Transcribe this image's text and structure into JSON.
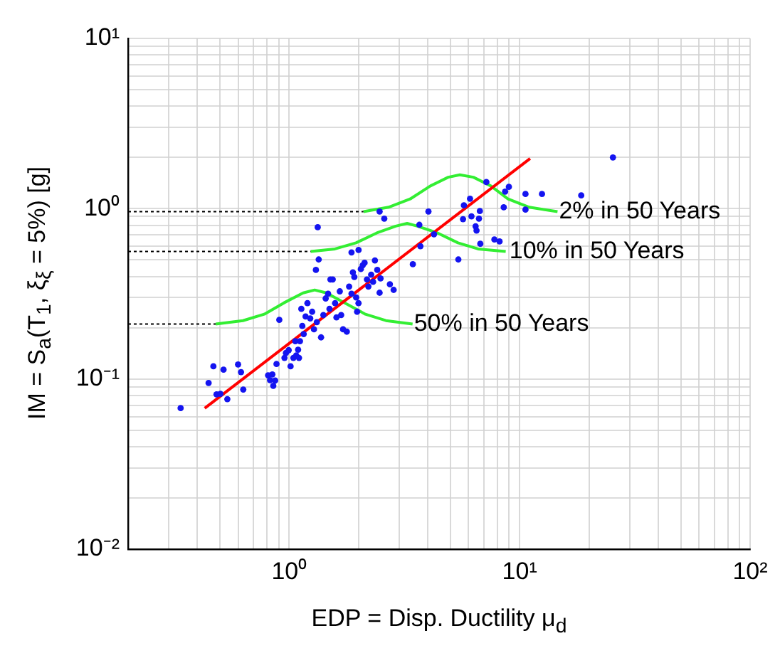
{
  "chart_data": {
    "type": "scatter",
    "xlabel": "EDP = Disp. Ductility μ$_{d}$",
    "ylabel": "IM = S$_{a}$(T$_{1}$, ξ$_{ξ}$ = 5%) [g]",
    "log": "xy",
    "grid": true,
    "legend": false,
    "marker": "circle",
    "xlim": [
      0.2,
      100
    ],
    "ylim": [
      0.01,
      10
    ],
    "xticks": [
      {
        "value": 0.2,
        "label": null
      },
      {
        "value": 0.3,
        "label": null
      },
      {
        "value": 0.4,
        "label": null
      },
      {
        "value": 0.5,
        "label": null
      },
      {
        "value": 0.6,
        "label": null
      },
      {
        "value": 0.7,
        "label": null
      },
      {
        "value": 0.8,
        "label": null
      },
      {
        "value": 0.9,
        "label": null
      },
      {
        "value": 1,
        "label": "10⁰"
      },
      {
        "value": 2,
        "label": null
      },
      {
        "value": 3,
        "label": null
      },
      {
        "value": 4,
        "label": null
      },
      {
        "value": 5,
        "label": null
      },
      {
        "value": 6,
        "label": null
      },
      {
        "value": 7,
        "label": null
      },
      {
        "value": 8,
        "label": null
      },
      {
        "value": 9,
        "label": null
      },
      {
        "value": 10,
        "label": "10¹"
      },
      {
        "value": 20,
        "label": null
      },
      {
        "value": 30,
        "label": null
      },
      {
        "value": 40,
        "label": null
      },
      {
        "value": 50,
        "label": null
      },
      {
        "value": 60,
        "label": null
      },
      {
        "value": 70,
        "label": null
      },
      {
        "value": 80,
        "label": null
      },
      {
        "value": 90,
        "label": null
      },
      {
        "value": 100,
        "label": "10²"
      }
    ],
    "yticks": [
      {
        "value": 0.01,
        "label": "10⁻²"
      },
      {
        "value": 0.02,
        "label": null
      },
      {
        "value": 0.03,
        "label": null
      },
      {
        "value": 0.04,
        "label": null
      },
      {
        "value": 0.05,
        "label": null
      },
      {
        "value": 0.06,
        "label": null
      },
      {
        "value": 0.07,
        "label": null
      },
      {
        "value": 0.08,
        "label": null
      },
      {
        "value": 0.09,
        "label": null
      },
      {
        "value": 0.1,
        "label": "10⁻¹"
      },
      {
        "value": 0.2,
        "label": null
      },
      {
        "value": 0.3,
        "label": null
      },
      {
        "value": 0.4,
        "label": null
      },
      {
        "value": 0.5,
        "label": null
      },
      {
        "value": 0.6,
        "label": null
      },
      {
        "value": 0.7,
        "label": null
      },
      {
        "value": 0.8,
        "label": null
      },
      {
        "value": 0.9,
        "label": null
      },
      {
        "value": 1,
        "label": "10⁰"
      },
      {
        "value": 2,
        "label": null
      },
      {
        "value": 3,
        "label": null
      },
      {
        "value": 4,
        "label": null
      },
      {
        "value": 5,
        "label": null
      },
      {
        "value": 6,
        "label": null
      },
      {
        "value": 7,
        "label": null
      },
      {
        "value": 8,
        "label": null
      },
      {
        "value": 9,
        "label": null
      },
      {
        "value": 10,
        "label": "10¹"
      }
    ],
    "series": [
      {
        "type": "line",
        "color": "#000000",
        "line_style": "dotted",
        "marker": "none",
        "x": [
          0.2,
          2.1
        ],
        "values": [
          0.96,
          0.96
        ]
      },
      {
        "type": "line",
        "color": "#000000",
        "line_style": "dotted",
        "marker": "none",
        "x": [
          0.2,
          1.24
        ],
        "values": [
          0.56,
          0.56
        ]
      },
      {
        "type": "line",
        "color": "#000000",
        "line_style": "dotted",
        "marker": "none",
        "x": [
          0.2,
          0.48
        ],
        "values": [
          0.21,
          0.21
        ]
      },
      {
        "type": "scatter",
        "color": "#1414f0",
        "x": [
          0.338,
          0.447,
          0.469,
          0.484,
          0.503,
          0.519,
          0.539,
          0.6,
          0.618,
          0.632,
          0.81,
          0.826,
          0.845,
          0.853,
          0.869,
          0.881,
          0.906,
          0.954,
          0.968,
          0.995,
          1.014,
          1.043,
          1.063,
          1.073,
          1.093,
          1.103,
          1.114,
          1.129,
          1.14,
          1.156,
          1.178,
          1.2,
          1.234,
          1.258,
          1.281,
          1.306,
          1.318,
          1.343,
          1.375,
          1.407,
          1.44,
          1.475,
          1.496,
          1.51,
          1.545,
          1.582,
          1.604,
          1.658,
          1.681,
          1.713,
          1.778,
          1.82,
          1.864,
          1.89,
          1.917,
          1.953,
          1.971,
          1.999,
          2.046,
          2.085,
          2.124,
          2.175,
          2.206,
          2.269,
          2.312,
          2.355,
          2.411,
          2.468,
          2.491,
          2.735,
          2.84,
          3.44,
          5.42,
          1.33,
          1.864,
          2.0,
          2.468,
          2.586,
          3.71,
          3.67,
          4.02,
          4.25,
          5.68,
          5.73,
          6.09,
          6.18,
          6.44,
          6.5,
          6.66,
          6.72,
          6.75,
          7.17,
          7.77,
          8.18,
          8.53,
          8.65,
          8.98,
          10.6,
          10.6,
          12.5,
          18.5,
          25.4
        ],
        "values": [
          0.0674,
          0.0947,
          0.1186,
          0.0812,
          0.0817,
          0.1133,
          0.0761,
          0.1216,
          0.1097,
          0.0866,
          0.105,
          0.0984,
          0.1063,
          0.0911,
          0.0978,
          0.1224,
          0.2225,
          0.133,
          0.142,
          0.1475,
          0.1186,
          0.133,
          0.1666,
          0.1375,
          0.1484,
          0.133,
          0.1666,
          0.258,
          0.2047,
          0.1835,
          0.2327,
          0.2786,
          0.2268,
          0.248,
          0.1956,
          0.4366,
          0.2156,
          0.503,
          0.1754,
          0.2373,
          0.297,
          0.3167,
          0.258,
          0.384,
          0.384,
          0.2786,
          0.2298,
          0.327,
          0.2373,
          0.1956,
          0.1895,
          0.3487,
          0.3167,
          0.4229,
          0.3966,
          0.3009,
          0.248,
          0.2786,
          0.4422,
          0.4656,
          0.4808,
          0.384,
          0.3487,
          0.4095,
          0.3719,
          0.4965,
          0.4366,
          0.3208,
          0.389,
          0.36,
          0.3334,
          0.4718,
          0.503,
          0.778,
          0.5537,
          0.572,
          0.962,
          0.874,
          0.602,
          0.804,
          0.962,
          0.707,
          0.868,
          1.046,
          1.144,
          0.902,
          0.788,
          0.744,
          0.874,
          0.968,
          0.622,
          1.433,
          0.659,
          0.642,
          1.019,
          1.26,
          1.343,
          1.22,
          0.987,
          1.22,
          1.197,
          2.0
        ]
      },
      {
        "type": "line",
        "color": "#ff0000",
        "marker": "none",
        "x": [
          0.43,
          11.1
        ],
        "values": [
          0.0673,
          1.97
        ]
      },
      {
        "type": "line",
        "color": "#33ee33",
        "marker": "none",
        "x": [
          2.1,
          2.7,
          3.35,
          4.1,
          4.9,
          5.5,
          6.3,
          7.5,
          8.9,
          11,
          14.6
        ],
        "values": [
          0.96,
          1.02,
          1.14,
          1.36,
          1.53,
          1.58,
          1.53,
          1.36,
          1.14,
          1.02,
          0.96
        ]
      },
      {
        "type": "line",
        "color": "#33ee33",
        "marker": "none",
        "x": [
          1.24,
          1.58,
          1.95,
          2.4,
          2.9,
          3.25,
          3.6,
          4.4,
          5.4,
          6.6,
          8.7
        ],
        "values": [
          0.56,
          0.58,
          0.63,
          0.72,
          0.79,
          0.82,
          0.79,
          0.72,
          0.63,
          0.58,
          0.56
        ]
      },
      {
        "type": "line",
        "color": "#33ee33",
        "marker": "none",
        "x": [
          0.48,
          0.63,
          0.78,
          0.95,
          1.15,
          1.29,
          1.45,
          1.74,
          2.14,
          2.63,
          3.43
        ],
        "values": [
          0.21,
          0.22,
          0.24,
          0.28,
          0.32,
          0.333,
          0.32,
          0.28,
          0.24,
          0.22,
          0.21
        ]
      }
    ],
    "annotations": [
      {
        "text": "2% in 50 Years",
        "x": 14.6,
        "y": 0.96
      },
      {
        "text": "10% in 50 Years",
        "x": 8.9,
        "y": 0.56
      },
      {
        "text": "50% in 50 Years",
        "x": 3.43,
        "y": 0.21
      }
    ]
  }
}
